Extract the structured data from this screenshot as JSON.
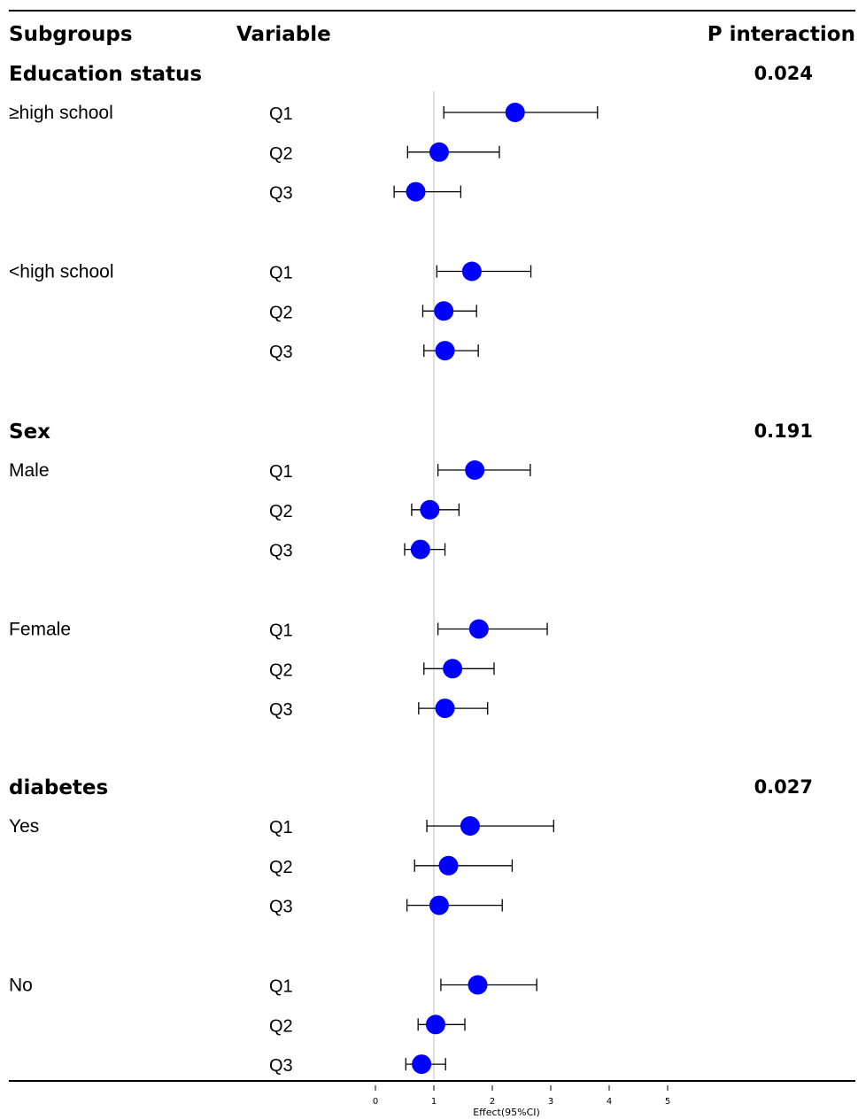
{
  "headers": {
    "subgroups": "Subgroups",
    "variable": "Variable",
    "p_interaction": "P interaction"
  },
  "colors": {
    "marker": "#0000ff",
    "ref_line": "#c8c8c8",
    "line": "#000000"
  },
  "chart_data": {
    "type": "forest",
    "xlabel": "Effect(95%CI)",
    "xticks": [
      "0",
      "1",
      "2",
      "3",
      "4",
      "5"
    ],
    "reference_line": 1,
    "sections": [
      {
        "category": "Education status",
        "p_interaction": "0.024",
        "groups": [
          {
            "name": "≥high school",
            "rows": [
              {
                "variable": "Q1",
                "effect": 2.39,
                "lower": 1.17,
                "upper": 3.8
              },
              {
                "variable": "Q2",
                "effect": 1.09,
                "lower": 0.55,
                "upper": 2.12
              },
              {
                "variable": "Q3",
                "effect": 0.69,
                "lower": 0.32,
                "upper": 1.46
              }
            ]
          },
          {
            "name": "<high school",
            "rows": [
              {
                "variable": "Q1",
                "effect": 1.65,
                "lower": 1.05,
                "upper": 2.66
              },
              {
                "variable": "Q2",
                "effect": 1.17,
                "lower": 0.81,
                "upper": 1.73
              },
              {
                "variable": "Q3",
                "effect": 1.19,
                "lower": 0.83,
                "upper": 1.76
              }
            ]
          }
        ]
      },
      {
        "category": "Sex",
        "p_interaction": "0.191",
        "groups": [
          {
            "name": "Male",
            "rows": [
              {
                "variable": "Q1",
                "effect": 1.7,
                "lower": 1.07,
                "upper": 2.65
              },
              {
                "variable": "Q2",
                "effect": 0.93,
                "lower": 0.62,
                "upper": 1.43
              },
              {
                "variable": "Q3",
                "effect": 0.77,
                "lower": 0.5,
                "upper": 1.19
              }
            ]
          },
          {
            "name": "Female",
            "rows": [
              {
                "variable": "Q1",
                "effect": 1.77,
                "lower": 1.07,
                "upper": 2.94
              },
              {
                "variable": "Q2",
                "effect": 1.32,
                "lower": 0.83,
                "upper": 2.03
              },
              {
                "variable": "Q3",
                "effect": 1.19,
                "lower": 0.74,
                "upper": 1.92
              }
            ]
          }
        ]
      },
      {
        "category": "diabetes",
        "p_interaction": "0.027",
        "groups": [
          {
            "name": "Yes",
            "rows": [
              {
                "variable": "Q1",
                "effect": 1.62,
                "lower": 0.88,
                "upper": 3.05
              },
              {
                "variable": "Q2",
                "effect": 1.25,
                "lower": 0.67,
                "upper": 2.34
              },
              {
                "variable": "Q3",
                "effect": 1.09,
                "lower": 0.54,
                "upper": 2.17
              }
            ]
          },
          {
            "name": "No",
            "rows": [
              {
                "variable": "Q1",
                "effect": 1.75,
                "lower": 1.12,
                "upper": 2.76
              },
              {
                "variable": "Q2",
                "effect": 1.03,
                "lower": 0.73,
                "upper": 1.53
              },
              {
                "variable": "Q3",
                "effect": 0.79,
                "lower": 0.52,
                "upper": 1.2
              }
            ]
          }
        ]
      }
    ]
  }
}
